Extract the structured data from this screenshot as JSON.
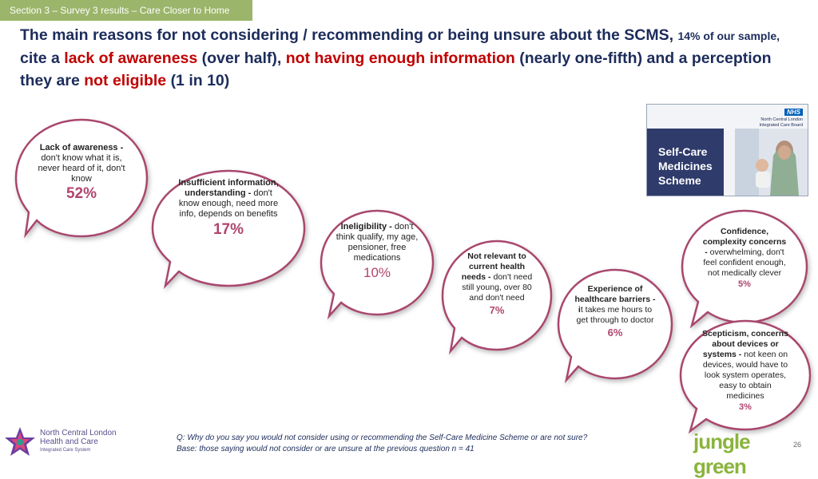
{
  "section_tab": "Section 3 – Survey 3 results – Care Closer to Home",
  "headline": {
    "p1": "The main reasons for not considering / recommending or being unsure about the SCMS,",
    "p2": "14% of our sample,",
    "p3": "cite a",
    "p4": "lack of awareness",
    "p5": "(over half),",
    "p6": "not having enough information",
    "p7": "(nearly one-fifth) and a perception they are",
    "p8": "not eligible",
    "p9": "(1 in 10)"
  },
  "promo": {
    "title": "Self-Care\nMedicines\nScheme",
    "nhs": "NHS",
    "org": "North Central London\nIntegrated Care Board"
  },
  "bubbles": [
    {
      "bold": "Lack of awareness -",
      "text": "don't know what it is, never heard of it, don't know",
      "pct": "52%"
    },
    {
      "bold": "Insufficient information, understanding -",
      "text": "don't know enough, need more info, depends on benefits",
      "pct": "17%"
    },
    {
      "bold": "Ineligibility -",
      "text": "don't think qualify, my age, pensioner, free medications",
      "pct": "10%"
    },
    {
      "bold": "Not relevant to current health needs -",
      "text": "don't need still young, over 80 and don't need",
      "pct": "7%"
    },
    {
      "bold": "Experience of healthcare barriers - i",
      "text": "t takes me hours to get through to doctor",
      "pct": "6%"
    },
    {
      "bold": "Confidence, complexity concerns -",
      "text": "overwhelming, don't feel confident enough, not medically clever",
      "pct": "5%"
    },
    {
      "bold": "Scepticism, concerns about devices or systems -",
      "text": "not keen on devices, would have to look system operates, easy to obtain medicines",
      "pct": "3%"
    }
  ],
  "footer": {
    "question": "Q: Why do you say you would not consider using or recommending the Self-Care Medicine Scheme or are not sure?",
    "base": "Base: those saying would not consider or are unsure at the previous question n = 41"
  },
  "logos": {
    "ncl_line1": "North Central London\nHealth and Care",
    "ncl_line2": "Integrated Care System",
    "jungle_green": "jungle green"
  },
  "page_number": "26",
  "colors": {
    "accent_red": "#c00000",
    "navy": "#1c2c5b",
    "bubble_border": "#a9476e",
    "tab_green": "#9bb56a"
  }
}
